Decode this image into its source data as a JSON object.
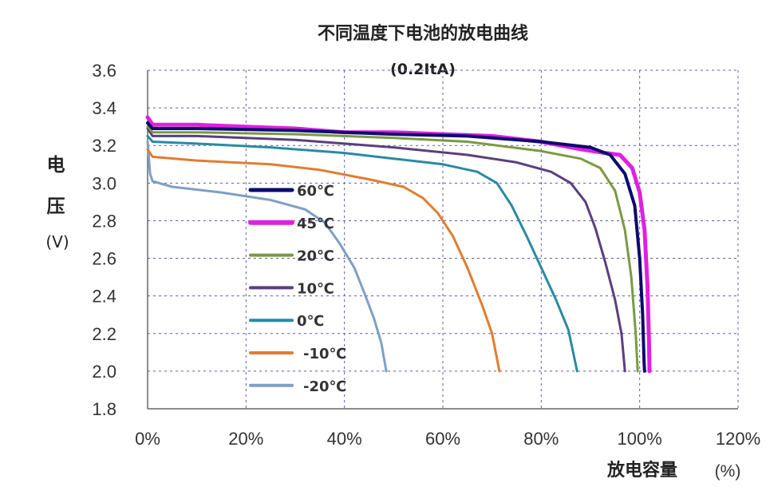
{
  "chart_data": {
    "type": "line",
    "title": "不同温度下电池的放电曲线",
    "subtitle": "(0.2ItA)",
    "ylabel_lines": [
      "电",
      "压",
      "(V)"
    ],
    "xlabel": "放电容量",
    "xlabel_unit": "(%)",
    "xlim": [
      0,
      120
    ],
    "ylim": [
      1.8,
      3.6
    ],
    "x_ticks": [
      "0%",
      "20%",
      "40%",
      "60%",
      "80%",
      "100%",
      "120%"
    ],
    "y_ticks": [
      "1.8",
      "2.0",
      "2.2",
      "2.4",
      "2.6",
      "2.8",
      "3.0",
      "3.2",
      "3.4",
      "3.6"
    ],
    "grid": true,
    "legend_position": "center-left",
    "series": [
      {
        "name": "60℃",
        "color": "#0b0b6e",
        "width": 4,
        "points": [
          [
            0,
            3.32
          ],
          [
            1,
            3.29
          ],
          [
            10,
            3.29
          ],
          [
            30,
            3.28
          ],
          [
            50,
            3.26
          ],
          [
            65,
            3.25
          ],
          [
            80,
            3.22
          ],
          [
            90,
            3.19
          ],
          [
            94,
            3.15
          ],
          [
            97,
            3.05
          ],
          [
            99,
            2.88
          ],
          [
            100,
            2.6
          ],
          [
            100.6,
            2.3
          ],
          [
            100.9,
            2.05
          ],
          [
            101,
            2.0
          ]
        ]
      },
      {
        "name": "45℃",
        "color": "#e020e0",
        "width": 5,
        "points": [
          [
            0,
            3.35
          ],
          [
            1,
            3.31
          ],
          [
            10,
            3.31
          ],
          [
            20,
            3.3
          ],
          [
            30,
            3.29
          ],
          [
            40,
            3.27
          ],
          [
            50,
            3.27
          ],
          [
            60,
            3.26
          ],
          [
            70,
            3.25
          ],
          [
            80,
            3.22
          ],
          [
            88,
            3.18
          ],
          [
            93,
            3.16
          ],
          [
            96,
            3.15
          ],
          [
            98.5,
            3.08
          ],
          [
            100,
            2.95
          ],
          [
            101,
            2.75
          ],
          [
            101.6,
            2.45
          ],
          [
            101.9,
            2.15
          ],
          [
            102,
            2.0
          ]
        ]
      },
      {
        "name": "20℃",
        "color": "#7a9a42",
        "width": 3,
        "points": [
          [
            0,
            3.3
          ],
          [
            1,
            3.27
          ],
          [
            10,
            3.27
          ],
          [
            30,
            3.26
          ],
          [
            50,
            3.24
          ],
          [
            65,
            3.22
          ],
          [
            80,
            3.17
          ],
          [
            88,
            3.13
          ],
          [
            92,
            3.08
          ],
          [
            95,
            2.96
          ],
          [
            97,
            2.75
          ],
          [
            98.3,
            2.5
          ],
          [
            99.2,
            2.2
          ],
          [
            99.6,
            2.0
          ]
        ]
      },
      {
        "name": "10℃",
        "color": "#5a3f7e",
        "width": 3,
        "points": [
          [
            0,
            3.29
          ],
          [
            1,
            3.25
          ],
          [
            10,
            3.25
          ],
          [
            30,
            3.23
          ],
          [
            50,
            3.19
          ],
          [
            65,
            3.15
          ],
          [
            75,
            3.11
          ],
          [
            82,
            3.06
          ],
          [
            86,
            3.0
          ],
          [
            89,
            2.9
          ],
          [
            91,
            2.76
          ],
          [
            93,
            2.58
          ],
          [
            95,
            2.38
          ],
          [
            96.3,
            2.2
          ],
          [
            97,
            2.0
          ]
        ]
      },
      {
        "name": "0℃",
        "color": "#2a8aa3",
        "width": 3,
        "points": [
          [
            0,
            3.25
          ],
          [
            1,
            3.22
          ],
          [
            10,
            3.21
          ],
          [
            25,
            3.19
          ],
          [
            40,
            3.16
          ],
          [
            50,
            3.13
          ],
          [
            60,
            3.1
          ],
          [
            67,
            3.06
          ],
          [
            71,
            3.0
          ],
          [
            74,
            2.88
          ],
          [
            77,
            2.72
          ],
          [
            80,
            2.55
          ],
          [
            83,
            2.38
          ],
          [
            85.5,
            2.22
          ],
          [
            87.3,
            2.0
          ]
        ]
      },
      {
        "name": "-10℃",
        "color": "#e07d32",
        "width": 3,
        "points": [
          [
            0,
            3.18
          ],
          [
            1,
            3.14
          ],
          [
            10,
            3.12
          ],
          [
            25,
            3.1
          ],
          [
            35,
            3.07
          ],
          [
            45,
            3.02
          ],
          [
            52,
            2.98
          ],
          [
            56,
            2.92
          ],
          [
            59,
            2.84
          ],
          [
            62,
            2.72
          ],
          [
            65,
            2.55
          ],
          [
            68,
            2.35
          ],
          [
            70,
            2.2
          ],
          [
            71.5,
            2.0
          ]
        ]
      },
      {
        "name": "-20℃",
        "color": "#7f9fc4",
        "width": 3,
        "points": [
          [
            0,
            3.22
          ],
          [
            0.5,
            3.05
          ],
          [
            1,
            3.01
          ],
          [
            5,
            2.98
          ],
          [
            15,
            2.95
          ],
          [
            25,
            2.91
          ],
          [
            32,
            2.86
          ],
          [
            36,
            2.79
          ],
          [
            39,
            2.68
          ],
          [
            42,
            2.55
          ],
          [
            44,
            2.42
          ],
          [
            46,
            2.28
          ],
          [
            47.5,
            2.15
          ],
          [
            48.5,
            2.0
          ]
        ]
      }
    ]
  }
}
